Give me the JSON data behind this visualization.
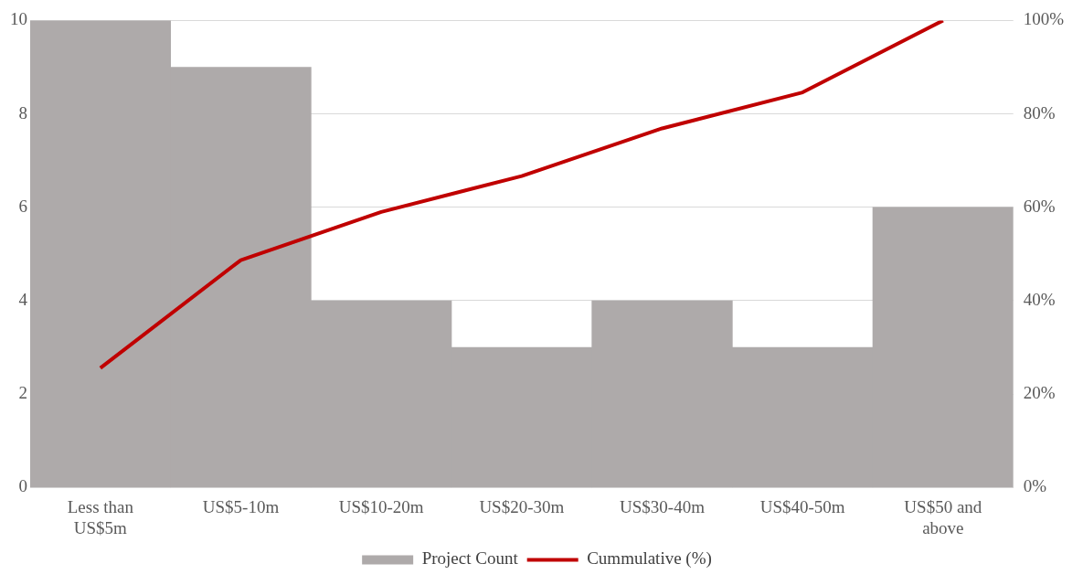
{
  "chart_data": {
    "type": "bar",
    "categories": [
      "Less than US$5m",
      "US$5-10m",
      "US$10-20m",
      "US$20-30m",
      "US$30-40m",
      "US$40-50m",
      "US$50 and above"
    ],
    "series": [
      {
        "name": "Project Count",
        "color": "#aeaaaa",
        "values": [
          10,
          9,
          4,
          3,
          4,
          3,
          6
        ]
      },
      {
        "name": "Cummulative (%)",
        "type": "line",
        "axis": "y2",
        "color": "#c00000",
        "values": [
          25.6,
          48.7,
          59,
          66.7,
          76.9,
          84.6,
          100
        ]
      }
    ],
    "ylim": [
      0,
      10
    ],
    "yticks": [
      0,
      2,
      4,
      6,
      8,
      10
    ],
    "y2lim": [
      0,
      100
    ],
    "y2ticks": [
      {
        "value": 0,
        "label": "0%"
      },
      {
        "value": 20,
        "label": "20%"
      },
      {
        "value": 40,
        "label": "40%"
      },
      {
        "value": 60,
        "label": "60%"
      },
      {
        "value": 80,
        "label": "80%"
      },
      {
        "value": 100,
        "label": "100%"
      }
    ],
    "grid": "y",
    "legend": "bottom"
  }
}
